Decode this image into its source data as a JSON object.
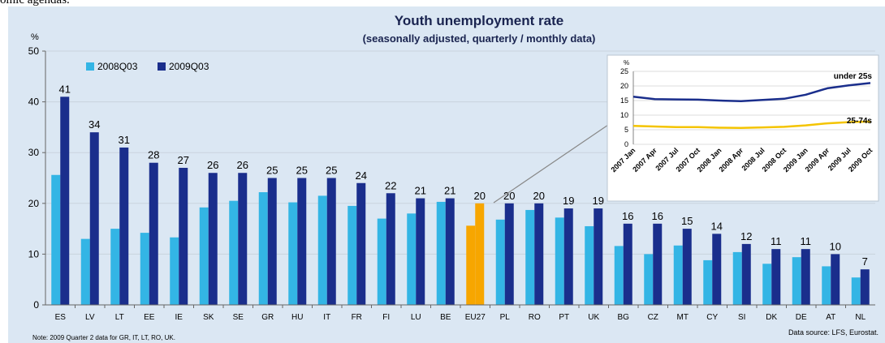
{
  "page": {
    "top_text": "omic agendas."
  },
  "colors": {
    "bar_2008": "#33b5e5",
    "bar_2009": "#1a2e8c",
    "bar_eu27": "#f7a600",
    "line_under25": "#1a2e8c",
    "line_25_74": "#f4c400"
  },
  "chart_data": [
    {
      "type": "bar",
      "title": "Youth unemployment rate",
      "subtitle": "(seasonally adjusted, quarterly / monthly data)",
      "ylabel": "%",
      "ylim": [
        0,
        50
      ],
      "yticks": [
        "0",
        "10",
        "20",
        "30",
        "40",
        "50"
      ],
      "categories": [
        "ES",
        "LV",
        "LT",
        "EE",
        "IE",
        "SK",
        "SE",
        "GR",
        "HU",
        "IT",
        "FR",
        "FI",
        "LU",
        "BE",
        "EU27",
        "PL",
        "RO",
        "PT",
        "UK",
        "BG",
        "CZ",
        "MT",
        "CY",
        "SI",
        "DK",
        "DE",
        "AT",
        "NL"
      ],
      "series": [
        {
          "name": "2008Q03",
          "values": [
            25.6,
            13.0,
            15.0,
            14.2,
            13.3,
            19.2,
            20.5,
            22.2,
            20.2,
            21.5,
            19.5,
            17.0,
            18.0,
            20.3,
            15.6,
            16.8,
            18.7,
            17.2,
            15.5,
            11.6,
            10.0,
            11.7,
            8.8,
            10.4,
            8.1,
            9.4,
            7.6,
            5.4
          ]
        },
        {
          "name": "2009Q03",
          "values": [
            41,
            34,
            31,
            28,
            27,
            26,
            26,
            25,
            25,
            25,
            24,
            22,
            21,
            21,
            20,
            20,
            20,
            19,
            19,
            16,
            16,
            15,
            14,
            12,
            11,
            11,
            10,
            7
          ]
        }
      ],
      "data_labels": [
        "41",
        "34",
        "31",
        "28",
        "27",
        "26",
        "26",
        "25",
        "25",
        "25",
        "24",
        "22",
        "21",
        "21",
        "20",
        "20",
        "20",
        "19",
        "19",
        "16",
        "16",
        "15",
        "14",
        "12",
        "11",
        "11",
        "10",
        "7"
      ],
      "legend_position": "top-left",
      "highlight_category": "EU27",
      "note": "Note: 2009 Quarter 2 data for GR, IT, LT, RO, UK.",
      "source": "Data source: LFS, Eurostat."
    },
    {
      "type": "line",
      "ylabel": "%",
      "ylim": [
        0,
        25
      ],
      "yticks": [
        "0",
        "5",
        "10",
        "15",
        "20",
        "25"
      ],
      "x": [
        "2007 Jan",
        "2007 Apr",
        "2007 Jul",
        "2007 Oct",
        "2008 Jan",
        "2008 Apr",
        "2008 Jul",
        "2008 Oct",
        "2009 Jan",
        "2009 Apr",
        "2009 Jul",
        "2009 Oct"
      ],
      "series": [
        {
          "name": "under 25s",
          "values": [
            16.3,
            15.5,
            15.4,
            15.3,
            15.0,
            14.8,
            15.2,
            15.6,
            17.0,
            19.2,
            20.2,
            21.0
          ]
        },
        {
          "name": "25-74s",
          "values": [
            6.3,
            6.1,
            5.9,
            5.9,
            5.7,
            5.6,
            5.8,
            6.0,
            6.5,
            7.2,
            7.6,
            7.8
          ]
        }
      ],
      "grid": true
    }
  ]
}
